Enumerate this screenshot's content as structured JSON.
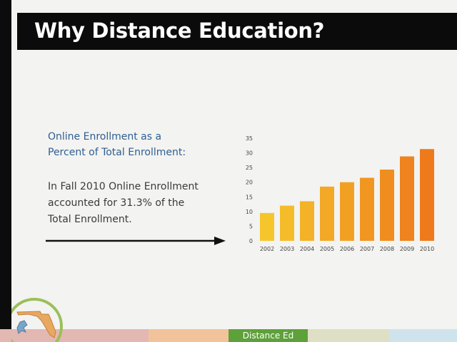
{
  "slide": {
    "title": "Why Distance Education?",
    "heading_lines": [
      "Online Enrollment as a",
      "Percent of Total Enrollment:"
    ],
    "body_lines": [
      "In Fall 2010 Online Enrollment",
      "accounted for 31.3% of the",
      "Total Enrollment."
    ],
    "footer_label": "Distance Ed"
  },
  "chart_data": {
    "type": "bar",
    "categories": [
      "2002",
      "2003",
      "2004",
      "2005",
      "2006",
      "2007",
      "2008",
      "2009",
      "2010"
    ],
    "values": [
      9.5,
      12,
      13.5,
      18.5,
      20,
      21.5,
      24.3,
      28.8,
      31.3
    ],
    "ylim": [
      0,
      35
    ],
    "yticks": [
      0,
      5,
      10,
      15,
      20,
      25,
      30,
      35
    ],
    "grid": false,
    "title": "",
    "xlabel": "",
    "ylabel": ""
  },
  "colors": {
    "title_bar": "#0b0b0b",
    "heading_text": "#2f5e92",
    "bar_gradient_start": "#f6c52c",
    "bar_gradient_end": "#ee7a1b",
    "footer_segments": [
      "#e3b8b3",
      "#f2c39a",
      "#5ea13a",
      "#dedfc4",
      "#cfe3ec"
    ]
  }
}
